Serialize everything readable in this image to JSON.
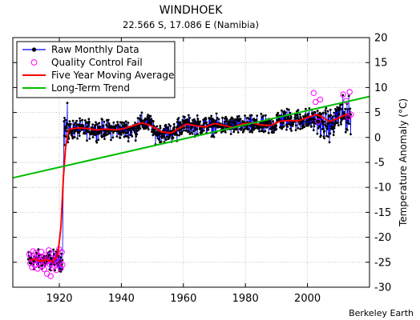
{
  "chart_data": {
    "type": "line",
    "title": "WINDHOEK",
    "subtitle": "22.566 S, 17.086 E (Namibia)",
    "xlabel": "",
    "ylabel": "Temperature Anomaly (°C)",
    "xlim": [
      1905,
      2020
    ],
    "ylim": [
      -30,
      20
    ],
    "x_ticks": [
      1920,
      1940,
      1960,
      1980,
      2000
    ],
    "y_ticks": [
      -30,
      -25,
      -20,
      -15,
      -10,
      -5,
      0,
      5,
      10,
      15,
      20
    ],
    "grid": true,
    "legend_position": "top-left",
    "credit": "Berkeley Earth",
    "series": [
      {
        "name": "Raw Monthly Data",
        "style": "line-with-dots",
        "color": "#0000ff",
        "marker_color": "#000000",
        "segments": [
          {
            "x_start": 1910.0,
            "x_end": 1921.0,
            "mean": -24.6,
            "spread": 1.7
          },
          {
            "x_start": 1921.5,
            "x_end": 1923.0,
            "mean": 1.5,
            "spread": 3.5
          },
          {
            "x_start": 1923.0,
            "x_end": 1945.0,
            "mean": 1.6,
            "spread": 1.6
          },
          {
            "x_start": 1945.0,
            "x_end": 1950.0,
            "mean": 2.8,
            "spread": 1.6
          },
          {
            "x_start": 1950.0,
            "x_end": 1958.0,
            "mean": 1.0,
            "spread": 1.6
          },
          {
            "x_start": 1958.0,
            "x_end": 1990.0,
            "mean": 2.4,
            "spread": 1.6
          },
          {
            "x_start": 1990.0,
            "x_end": 2004.0,
            "mean": 3.5,
            "spread": 1.9
          },
          {
            "x_start": 2004.0,
            "x_end": 2009.0,
            "mean": 2.6,
            "spread": 2.6
          },
          {
            "x_start": 2009.0,
            "x_end": 2014.0,
            "mean": 4.4,
            "spread": 2.8
          }
        ]
      },
      {
        "name": "Quality Control Fail",
        "style": "open-circles",
        "color": "#ff00ff",
        "points": [
          [
            1910.3,
            -23.4
          ],
          [
            1910.6,
            -25.2
          ],
          [
            1910.9,
            -24.1
          ],
          [
            1911.2,
            -26.0
          ],
          [
            1911.5,
            -22.8
          ],
          [
            1911.8,
            -24.7
          ],
          [
            1912.1,
            -25.6
          ],
          [
            1912.4,
            -23.1
          ],
          [
            1912.7,
            -24.3
          ],
          [
            1913.0,
            -26.3
          ],
          [
            1913.3,
            -23.9
          ],
          [
            1913.6,
            -25.1
          ],
          [
            1913.9,
            -24.6
          ],
          [
            1914.2,
            -22.9
          ],
          [
            1914.5,
            -25.8
          ],
          [
            1914.8,
            -24.0
          ],
          [
            1915.1,
            -26.4
          ],
          [
            1915.4,
            -23.6
          ],
          [
            1915.7,
            -25.0
          ],
          [
            1916.0,
            -27.3
          ],
          [
            1916.3,
            -24.8
          ],
          [
            1916.6,
            -22.6
          ],
          [
            1916.9,
            -25.4
          ],
          [
            1917.2,
            -27.8
          ],
          [
            1917.5,
            -24.2
          ],
          [
            1917.8,
            -26.1
          ],
          [
            1918.1,
            -23.3
          ],
          [
            1918.4,
            -25.7
          ],
          [
            1918.7,
            -24.5
          ],
          [
            1919.0,
            -26.6
          ],
          [
            1919.3,
            -23.8
          ],
          [
            1919.6,
            -25.3
          ],
          [
            1919.9,
            -22.4
          ],
          [
            1920.2,
            -24.9
          ],
          [
            1920.5,
            -26.2
          ],
          [
            1920.8,
            -23.0
          ],
          [
            1921.0,
            -25.5
          ],
          [
            2002.0,
            8.9
          ],
          [
            2002.6,
            7.1
          ],
          [
            2003.4,
            3.2
          ],
          [
            2004.1,
            7.6
          ],
          [
            2011.5,
            8.6
          ],
          [
            2012.5,
            7.3
          ],
          [
            2013.2,
            4.1
          ],
          [
            2013.6,
            9.1
          ],
          [
            2014.0,
            4.6
          ]
        ]
      },
      {
        "name": "Five Year Moving Average",
        "style": "line",
        "color": "#ff0000",
        "points": [
          [
            1910.5,
            -24.6
          ],
          [
            1912,
            -24.4
          ],
          [
            1914,
            -24.8
          ],
          [
            1916,
            -24.5
          ],
          [
            1918,
            -24.9
          ],
          [
            1919.5,
            -23.5
          ],
          [
            1920.5,
            -18.0
          ],
          [
            1921.3,
            -8.0
          ],
          [
            1922,
            -2.0
          ],
          [
            1923,
            1.6
          ],
          [
            1926,
            1.9
          ],
          [
            1929,
            1.8
          ],
          [
            1932,
            1.5
          ],
          [
            1935,
            1.7
          ],
          [
            1938,
            1.5
          ],
          [
            1941,
            1.8
          ],
          [
            1944,
            2.4
          ],
          [
            1946.5,
            2.9
          ],
          [
            1948,
            2.7
          ],
          [
            1950,
            2.2
          ],
          [
            1953,
            1.1
          ],
          [
            1956,
            0.9
          ],
          [
            1958,
            1.6
          ],
          [
            1961,
            2.7
          ],
          [
            1964,
            2.3
          ],
          [
            1967,
            2.1
          ],
          [
            1970,
            2.8
          ],
          [
            1973,
            2.4
          ],
          [
            1976,
            2.0
          ],
          [
            1979,
            2.7
          ],
          [
            1982,
            2.9
          ],
          [
            1985,
            2.5
          ],
          [
            1988,
            2.4
          ],
          [
            1991,
            3.2
          ],
          [
            1994,
            3.4
          ],
          [
            1997,
            3.3
          ],
          [
            2000,
            4.0
          ],
          [
            2003,
            4.6
          ],
          [
            2005,
            4.0
          ],
          [
            2007,
            3.2
          ],
          [
            2009,
            3.6
          ],
          [
            2011,
            4.2
          ],
          [
            2013,
            4.7
          ]
        ]
      },
      {
        "name": "Long-Term Trend",
        "style": "line",
        "color": "#00bb00",
        "points": [
          [
            1905,
            -8.1
          ],
          [
            2020,
            8.2
          ]
        ]
      }
    ]
  }
}
